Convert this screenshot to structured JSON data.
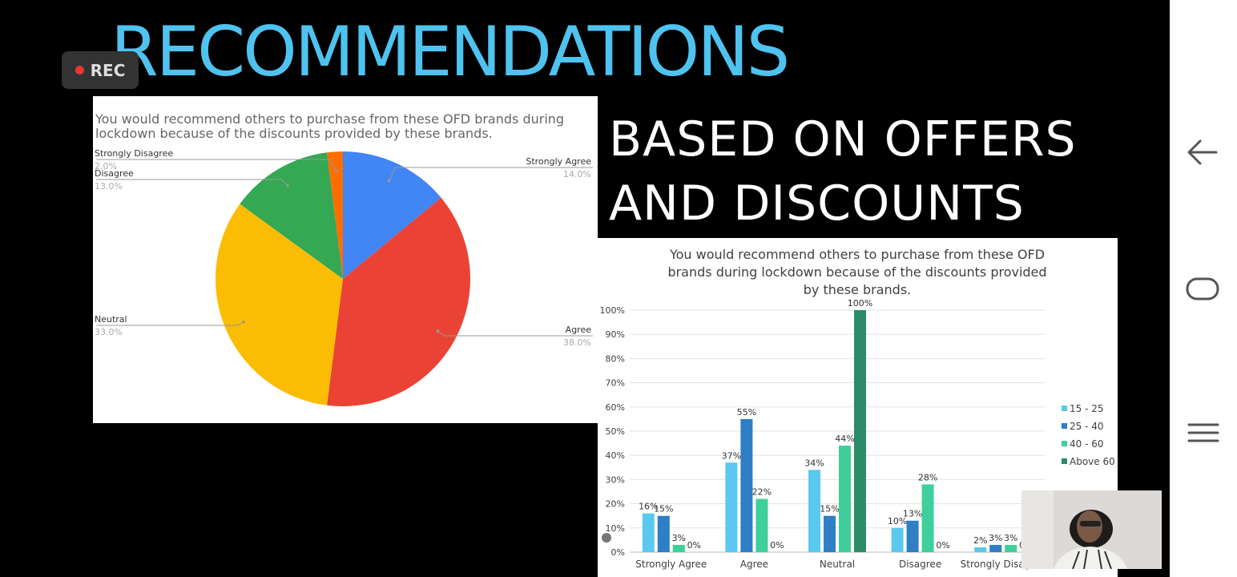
{
  "slide": {
    "title": "RECOMMENDATIONS",
    "subtitle_line1": "BASED ON OFFERS",
    "subtitle_line2": "AND DISCOUNTS"
  },
  "recording": {
    "label": "REC",
    "dot_color": "#e53935"
  },
  "chart_data": [
    {
      "type": "pie",
      "title": "You would recommend others to purchase from these OFD brands during lockdown because of the discounts provided by these brands.",
      "legend_placement": "callout labels",
      "slices": [
        {
          "label": "Strongly Agree",
          "value": 14.0,
          "value_label": "14.0%",
          "color": "#4285f4"
        },
        {
          "label": "Agree",
          "value": 38.0,
          "value_label": "38.0%",
          "color": "#ea4335"
        },
        {
          "label": "Neutral",
          "value": 33.0,
          "value_label": "33.0%",
          "color": "#fbbc04"
        },
        {
          "label": "Disagree",
          "value": 13.0,
          "value_label": "13.0%",
          "color": "#34a853"
        },
        {
          "label": "Strongly Disagree",
          "value": 2.0,
          "value_label": "2.0%",
          "color": "#ff6d01"
        }
      ]
    },
    {
      "type": "bar",
      "title_lines": [
        "You would recommend others to purchase from these OFD",
        "brands during lockdown because of the discounts provided",
        "by these brands."
      ],
      "categories": [
        "Strongly Agree",
        "Agree",
        "Neutral",
        "Disagree",
        "Strongly Disagree"
      ],
      "series": [
        {
          "name": "15 - 25",
          "color": "#5bc8ef",
          "values": [
            16,
            37,
            34,
            10,
            2
          ]
        },
        {
          "name": "25 - 40",
          "color": "#2e7fc4",
          "values": [
            15,
            55,
            15,
            13,
            3
          ]
        },
        {
          "name": "40 - 60",
          "color": "#3fcf9a",
          "values": [
            3,
            22,
            44,
            28,
            3
          ]
        },
        {
          "name": "Above 60",
          "color": "#2a8c68",
          "values": [
            0,
            0,
            100,
            0,
            0
          ]
        }
      ],
      "yticks": [
        "0%",
        "10%",
        "20%",
        "30%",
        "40%",
        "50%",
        "60%",
        "70%",
        "80%",
        "90%",
        "100%"
      ],
      "ylim": [
        0,
        100
      ],
      "grid": true,
      "legend_placement": "right"
    }
  ],
  "nav": {
    "back_icon": "back-arrow-icon",
    "home_icon": "home-icon",
    "menu_icon": "menu-icon"
  },
  "webcam": {
    "icon": "person-icon"
  }
}
